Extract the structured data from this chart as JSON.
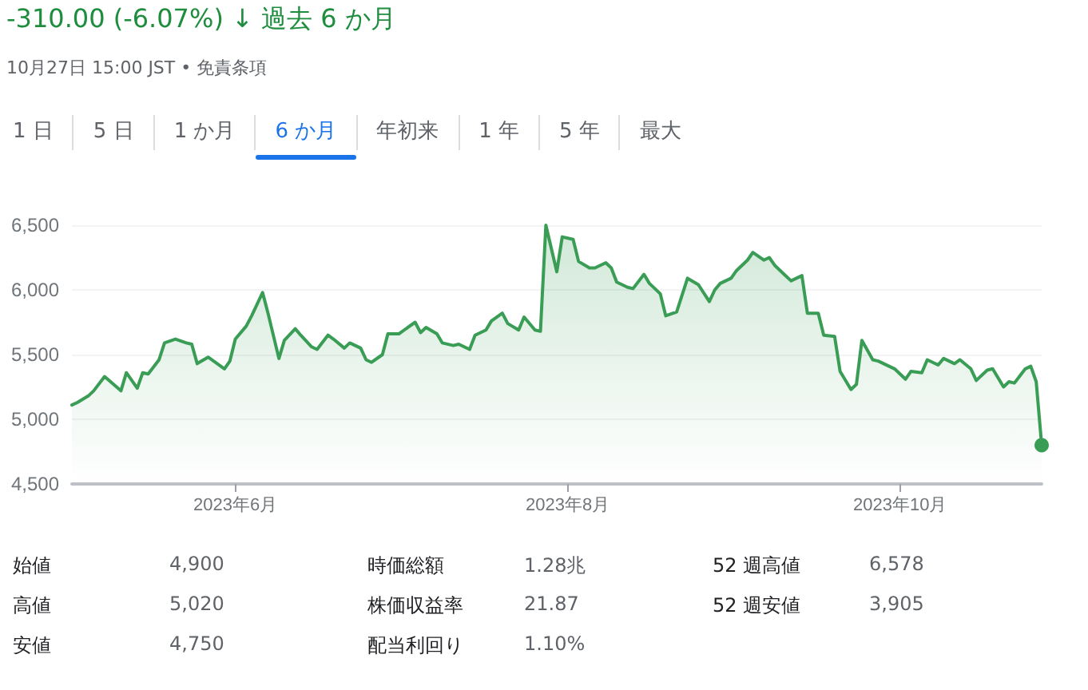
{
  "chart_data": {
    "type": "area",
    "title": "-310.00 (-6.07%) ↓ 過去 6 か月",
    "subtitle": "10月27日 15:00 JST • 免責条項",
    "annotations": [
      "1 日",
      "5 日",
      "1 か月",
      "6 か月",
      "年初来",
      "1 年",
      "5 年",
      "最大",
      "始値",
      "4,900",
      "時価総額",
      "1.28兆",
      "52 週高値",
      "6,578",
      "高値",
      "5,020",
      "株価収益率",
      "21.87",
      "52 週安値",
      "3,905",
      "安値",
      "4,750",
      "配当利回り",
      "1.10%"
    ],
    "x": [
      "2023-05-02",
      "2023-05-03",
      "2023-05-05",
      "2023-05-06",
      "2023-05-08",
      "2023-05-11",
      "2023-05-12",
      "2023-05-14",
      "2023-05-15",
      "2023-05-16",
      "2023-05-18",
      "2023-05-19",
      "2023-05-21",
      "2023-05-23",
      "2023-05-24",
      "2023-05-25",
      "2023-05-27",
      "2023-05-30",
      "2023-05-31",
      "2023-06-01",
      "2023-06-03",
      "2023-06-04",
      "2023-06-06",
      "2023-06-07",
      "2023-06-09",
      "2023-06-10",
      "2023-06-12",
      "2023-06-13",
      "2023-06-15",
      "2023-06-16",
      "2023-06-18",
      "2023-06-19",
      "2023-06-21",
      "2023-06-22",
      "2023-06-24",
      "2023-06-25",
      "2023-06-26",
      "2023-06-28",
      "2023-06-29",
      "2023-07-01",
      "2023-07-04",
      "2023-07-05",
      "2023-07-06",
      "2023-07-08",
      "2023-07-09",
      "2023-07-11",
      "2023-07-12",
      "2023-07-14",
      "2023-07-15",
      "2023-07-17",
      "2023-07-18",
      "2023-07-20",
      "2023-07-21",
      "2023-07-23",
      "2023-07-24",
      "2023-07-26",
      "2023-07-27",
      "2023-07-28",
      "2023-07-30",
      "2023-07-31",
      "2023-08-02",
      "2023-08-03",
      "2023-08-05",
      "2023-08-06",
      "2023-08-08",
      "2023-08-09",
      "2023-08-10",
      "2023-08-12",
      "2023-08-13",
      "2023-08-15",
      "2023-08-16",
      "2023-08-18",
      "2023-08-19",
      "2023-08-21",
      "2023-08-23",
      "2023-08-25",
      "2023-08-27",
      "2023-08-28",
      "2023-08-29",
      "2023-08-31",
      "2023-09-01",
      "2023-09-03",
      "2023-09-04",
      "2023-09-06",
      "2023-09-07",
      "2023-09-08",
      "2023-09-10",
      "2023-09-11",
      "2023-09-13",
      "2023-09-14",
      "2023-09-16",
      "2023-09-17",
      "2023-09-19",
      "2023-09-20",
      "2023-09-22",
      "2023-09-23",
      "2023-09-24",
      "2023-09-26",
      "2023-09-27",
      "2023-09-29",
      "2023-09-30",
      "2023-10-02",
      "2023-10-03",
      "2023-10-05",
      "2023-10-06",
      "2023-10-08",
      "2023-10-09",
      "2023-10-11",
      "2023-10-12",
      "2023-10-14",
      "2023-10-15",
      "2023-10-17",
      "2023-10-18",
      "2023-10-20",
      "2023-10-21",
      "2023-10-22",
      "2023-10-24",
      "2023-10-25",
      "2023-10-26",
      "2023-10-27"
    ],
    "series": [
      {
        "color": "#3a9d56",
        "values": [
          5110,
          5130,
          5180,
          5220,
          5330,
          5220,
          5360,
          5240,
          5360,
          5350,
          5460,
          5590,
          5620,
          5590,
          5580,
          5430,
          5480,
          5390,
          5450,
          5620,
          5720,
          5800,
          5980,
          5820,
          5470,
          5610,
          5700,
          5650,
          5560,
          5540,
          5650,
          5620,
          5550,
          5590,
          5550,
          5460,
          5440,
          5500,
          5660,
          5660,
          5750,
          5670,
          5710,
          5660,
          5590,
          5570,
          5580,
          5540,
          5650,
          5690,
          5760,
          5820,
          5740,
          5690,
          5790,
          5690,
          5680,
          6500,
          6140,
          6410,
          6390,
          6220,
          6170,
          6170,
          6210,
          6170,
          6060,
          6020,
          6010,
          6120,
          6050,
          5970,
          5800,
          5830,
          6090,
          6040,
          5910,
          6000,
          6050,
          6090,
          6150,
          6230,
          6290,
          6230,
          6250,
          6190,
          6110,
          6070,
          6110,
          5820,
          5820,
          5650,
          5640,
          5370,
          5230,
          5270,
          5610,
          5460,
          5450,
          5410,
          5390,
          5310,
          5370,
          5360,
          5460,
          5420,
          5470,
          5430,
          5460,
          5390,
          5300,
          5380,
          5390,
          5250,
          5290,
          5280,
          5390,
          5410,
          5290,
          4800
        ]
      }
    ],
    "xlim": [
      "2023-05-02",
      "2023-10-27"
    ],
    "xticks": [
      {
        "value": "2023-06-01",
        "label": "2023年6月"
      },
      {
        "value": "2023-08-01",
        "label": "2023年8月"
      },
      {
        "value": "2023-10-01",
        "label": "2023年10月"
      }
    ],
    "ylim": [
      4500,
      6500
    ],
    "yticks": [
      {
        "value": 4500,
        "label": "4,500"
      },
      {
        "value": 5000,
        "label": "5,000"
      },
      {
        "value": 5500,
        "label": "5,500"
      },
      {
        "value": 6000,
        "label": "6,000"
      },
      {
        "value": 6500,
        "label": "6,500"
      }
    ],
    "grid": "y"
  }
}
